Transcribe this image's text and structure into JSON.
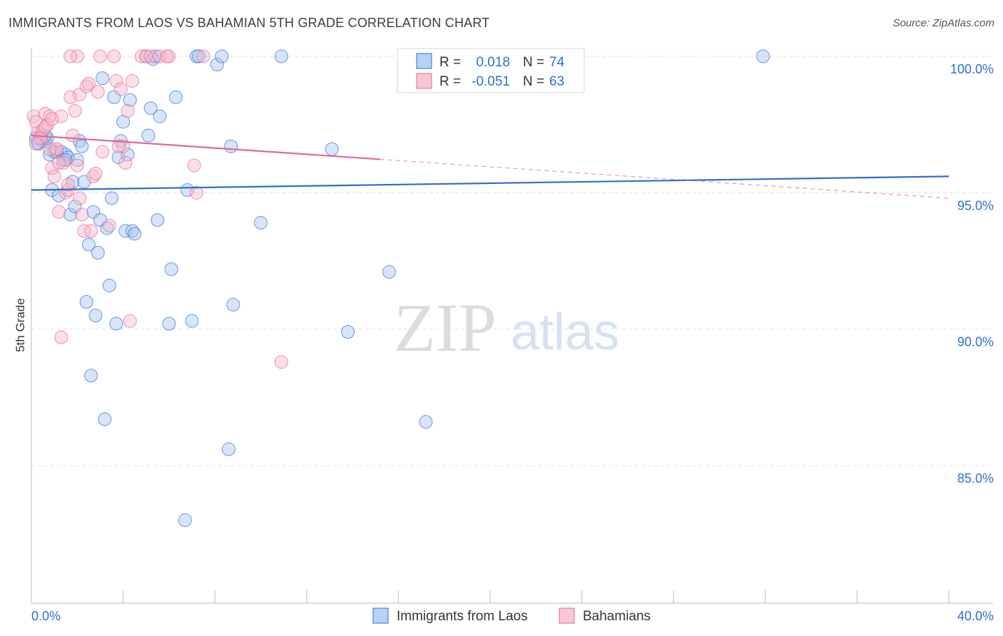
{
  "title": "IMMIGRANTS FROM LAOS VS BAHAMIAN 5TH GRADE CORRELATION CHART",
  "source": "Source: ZipAtlas.com",
  "colors": {
    "blue": "#2f6fd0",
    "blue_fill": "#a9c6f2",
    "pink": "#e06a9a",
    "pink_fill": "#f6b8cd",
    "grid": "#e0e0e0"
  },
  "chart_data": {
    "type": "scatter",
    "title": "IMMIGRANTS FROM LAOS VS BAHAMIAN 5TH GRADE CORRELATION CHART",
    "xlabel": "",
    "ylabel": "5th Grade",
    "xlim": [
      0,
      40
    ],
    "ylim": [
      80.5,
      100.8
    ],
    "x_tick_labels": [
      "0.0%",
      "40.0%"
    ],
    "y_ticks": [
      {
        "value": 100,
        "label": "100.0%"
      },
      {
        "value": 95,
        "label": "95.0%"
      },
      {
        "value": 90,
        "label": "90.0%"
      },
      {
        "value": 85,
        "label": "85.0%"
      }
    ],
    "legend": [
      {
        "r_label": "R =",
        "r_value": "0.018",
        "n_label": "N =",
        "n_value": "74"
      },
      {
        "r_label": "R =",
        "r_value": "-0.051",
        "n_label": "N =",
        "n_value": "63"
      }
    ],
    "watermark": {
      "zip": "ZIP",
      "atlas": "atlas"
    },
    "series": [
      {
        "name": "Immigrants from Laos",
        "trend": {
          "x": [
            0,
            40
          ],
          "y": [
            95.1,
            95.6
          ],
          "solid_until": 40
        },
        "points": [
          [
            0.2,
            97.0
          ],
          [
            0.3,
            96.8
          ],
          [
            0.4,
            97.1
          ],
          [
            0.5,
            96.9
          ],
          [
            0.6,
            96.9
          ],
          [
            0.7,
            97.0
          ],
          [
            0.8,
            96.4
          ],
          [
            0.9,
            95.1
          ],
          [
            1.0,
            96.5
          ],
          [
            1.1,
            96.5
          ],
          [
            1.2,
            94.9
          ],
          [
            1.3,
            96.5
          ],
          [
            1.4,
            96.2
          ],
          [
            1.5,
            96.4
          ],
          [
            1.6,
            96.3
          ],
          [
            1.7,
            94.2
          ],
          [
            1.8,
            95.4
          ],
          [
            1.9,
            94.5
          ],
          [
            2.0,
            96.2
          ],
          [
            2.1,
            96.9
          ],
          [
            2.2,
            96.7
          ],
          [
            2.3,
            95.4
          ],
          [
            2.4,
            91.0
          ],
          [
            2.5,
            93.1
          ],
          [
            2.6,
            88.3
          ],
          [
            2.7,
            94.3
          ],
          [
            2.8,
            90.5
          ],
          [
            2.9,
            92.8
          ],
          [
            3.0,
            94.0
          ],
          [
            3.1,
            99.2
          ],
          [
            3.2,
            86.7
          ],
          [
            3.3,
            93.7
          ],
          [
            3.4,
            91.6
          ],
          [
            3.5,
            94.8
          ],
          [
            3.6,
            98.5
          ],
          [
            3.7,
            90.2
          ],
          [
            3.8,
            96.3
          ],
          [
            3.9,
            96.9
          ],
          [
            4.0,
            97.6
          ],
          [
            4.1,
            93.6
          ],
          [
            4.2,
            96.4
          ],
          [
            4.3,
            98.4
          ],
          [
            4.4,
            93.6
          ],
          [
            4.5,
            93.5
          ],
          [
            5.0,
            100.0
          ],
          [
            5.1,
            97.1
          ],
          [
            5.2,
            98.1
          ],
          [
            5.3,
            99.9
          ],
          [
            5.4,
            100.0
          ],
          [
            5.5,
            94.0
          ],
          [
            5.6,
            97.8
          ],
          [
            6.0,
            90.2
          ],
          [
            6.1,
            92.2
          ],
          [
            6.3,
            98.5
          ],
          [
            6.7,
            83.0
          ],
          [
            6.8,
            95.1
          ],
          [
            7.0,
            90.3
          ],
          [
            7.2,
            100.0
          ],
          [
            7.3,
            100.0
          ],
          [
            8.1,
            99.7
          ],
          [
            8.3,
            100.0
          ],
          [
            8.6,
            85.6
          ],
          [
            8.7,
            96.7
          ],
          [
            8.8,
            90.9
          ],
          [
            10.0,
            93.9
          ],
          [
            10.9,
            100.0
          ],
          [
            13.1,
            96.6
          ],
          [
            13.8,
            89.9
          ],
          [
            15.6,
            92.1
          ],
          [
            17.2,
            86.6
          ],
          [
            31.9,
            100.0
          ],
          [
            0.3,
            96.8
          ],
          [
            1.5,
            96.2
          ],
          [
            0.6,
            97.1
          ]
        ]
      },
      {
        "name": "Bahamians",
        "trend": {
          "x": [
            0,
            40
          ],
          "y": [
            97.1,
            94.8
          ],
          "solid_until": 15.2
        },
        "points": [
          [
            0.1,
            97.8
          ],
          [
            0.2,
            97.6
          ],
          [
            0.3,
            97.2
          ],
          [
            0.4,
            97.0
          ],
          [
            0.5,
            97.3
          ],
          [
            0.6,
            97.9
          ],
          [
            0.7,
            97.5
          ],
          [
            0.8,
            97.8
          ],
          [
            0.9,
            95.9
          ],
          [
            1.0,
            95.6
          ],
          [
            1.1,
            96.6
          ],
          [
            1.2,
            94.3
          ],
          [
            1.3,
            97.8
          ],
          [
            1.4,
            96.1
          ],
          [
            1.5,
            95.0
          ],
          [
            1.6,
            95.1
          ],
          [
            1.7,
            98.5
          ],
          [
            1.8,
            97.1
          ],
          [
            1.9,
            98.0
          ],
          [
            2.0,
            96.0
          ],
          [
            2.1,
            98.6
          ],
          [
            2.2,
            94.2
          ],
          [
            2.3,
            93.6
          ],
          [
            2.4,
            98.9
          ],
          [
            2.5,
            99.0
          ],
          [
            2.6,
            93.6
          ],
          [
            2.7,
            95.6
          ],
          [
            2.8,
            95.7
          ],
          [
            2.9,
            98.7
          ],
          [
            3.0,
            100.0
          ],
          [
            3.1,
            96.5
          ],
          [
            3.4,
            93.8
          ],
          [
            3.6,
            100.0
          ],
          [
            3.7,
            99.1
          ],
          [
            3.9,
            98.8
          ],
          [
            4.0,
            96.7
          ],
          [
            4.1,
            96.1
          ],
          [
            4.2,
            98.0
          ],
          [
            4.3,
            90.3
          ],
          [
            4.4,
            99.1
          ],
          [
            4.8,
            100.0
          ],
          [
            5.0,
            100.0
          ],
          [
            5.2,
            100.0
          ],
          [
            5.6,
            100.0
          ],
          [
            6.0,
            100.0
          ],
          [
            7.1,
            96.0
          ],
          [
            7.2,
            95.0
          ],
          [
            7.5,
            100.0
          ],
          [
            10.9,
            88.8
          ],
          [
            1.3,
            89.7
          ],
          [
            0.4,
            97.0
          ],
          [
            0.6,
            97.4
          ],
          [
            1.6,
            95.3
          ],
          [
            1.1,
            96.6
          ],
          [
            2.0,
            100.0
          ],
          [
            1.7,
            100.0
          ],
          [
            0.9,
            97.7
          ],
          [
            5.9,
            100.0
          ],
          [
            3.8,
            96.7
          ],
          [
            1.2,
            96.1
          ],
          [
            0.2,
            96.8
          ],
          [
            2.1,
            94.8
          ],
          [
            0.8,
            96.6
          ]
        ]
      }
    ]
  }
}
